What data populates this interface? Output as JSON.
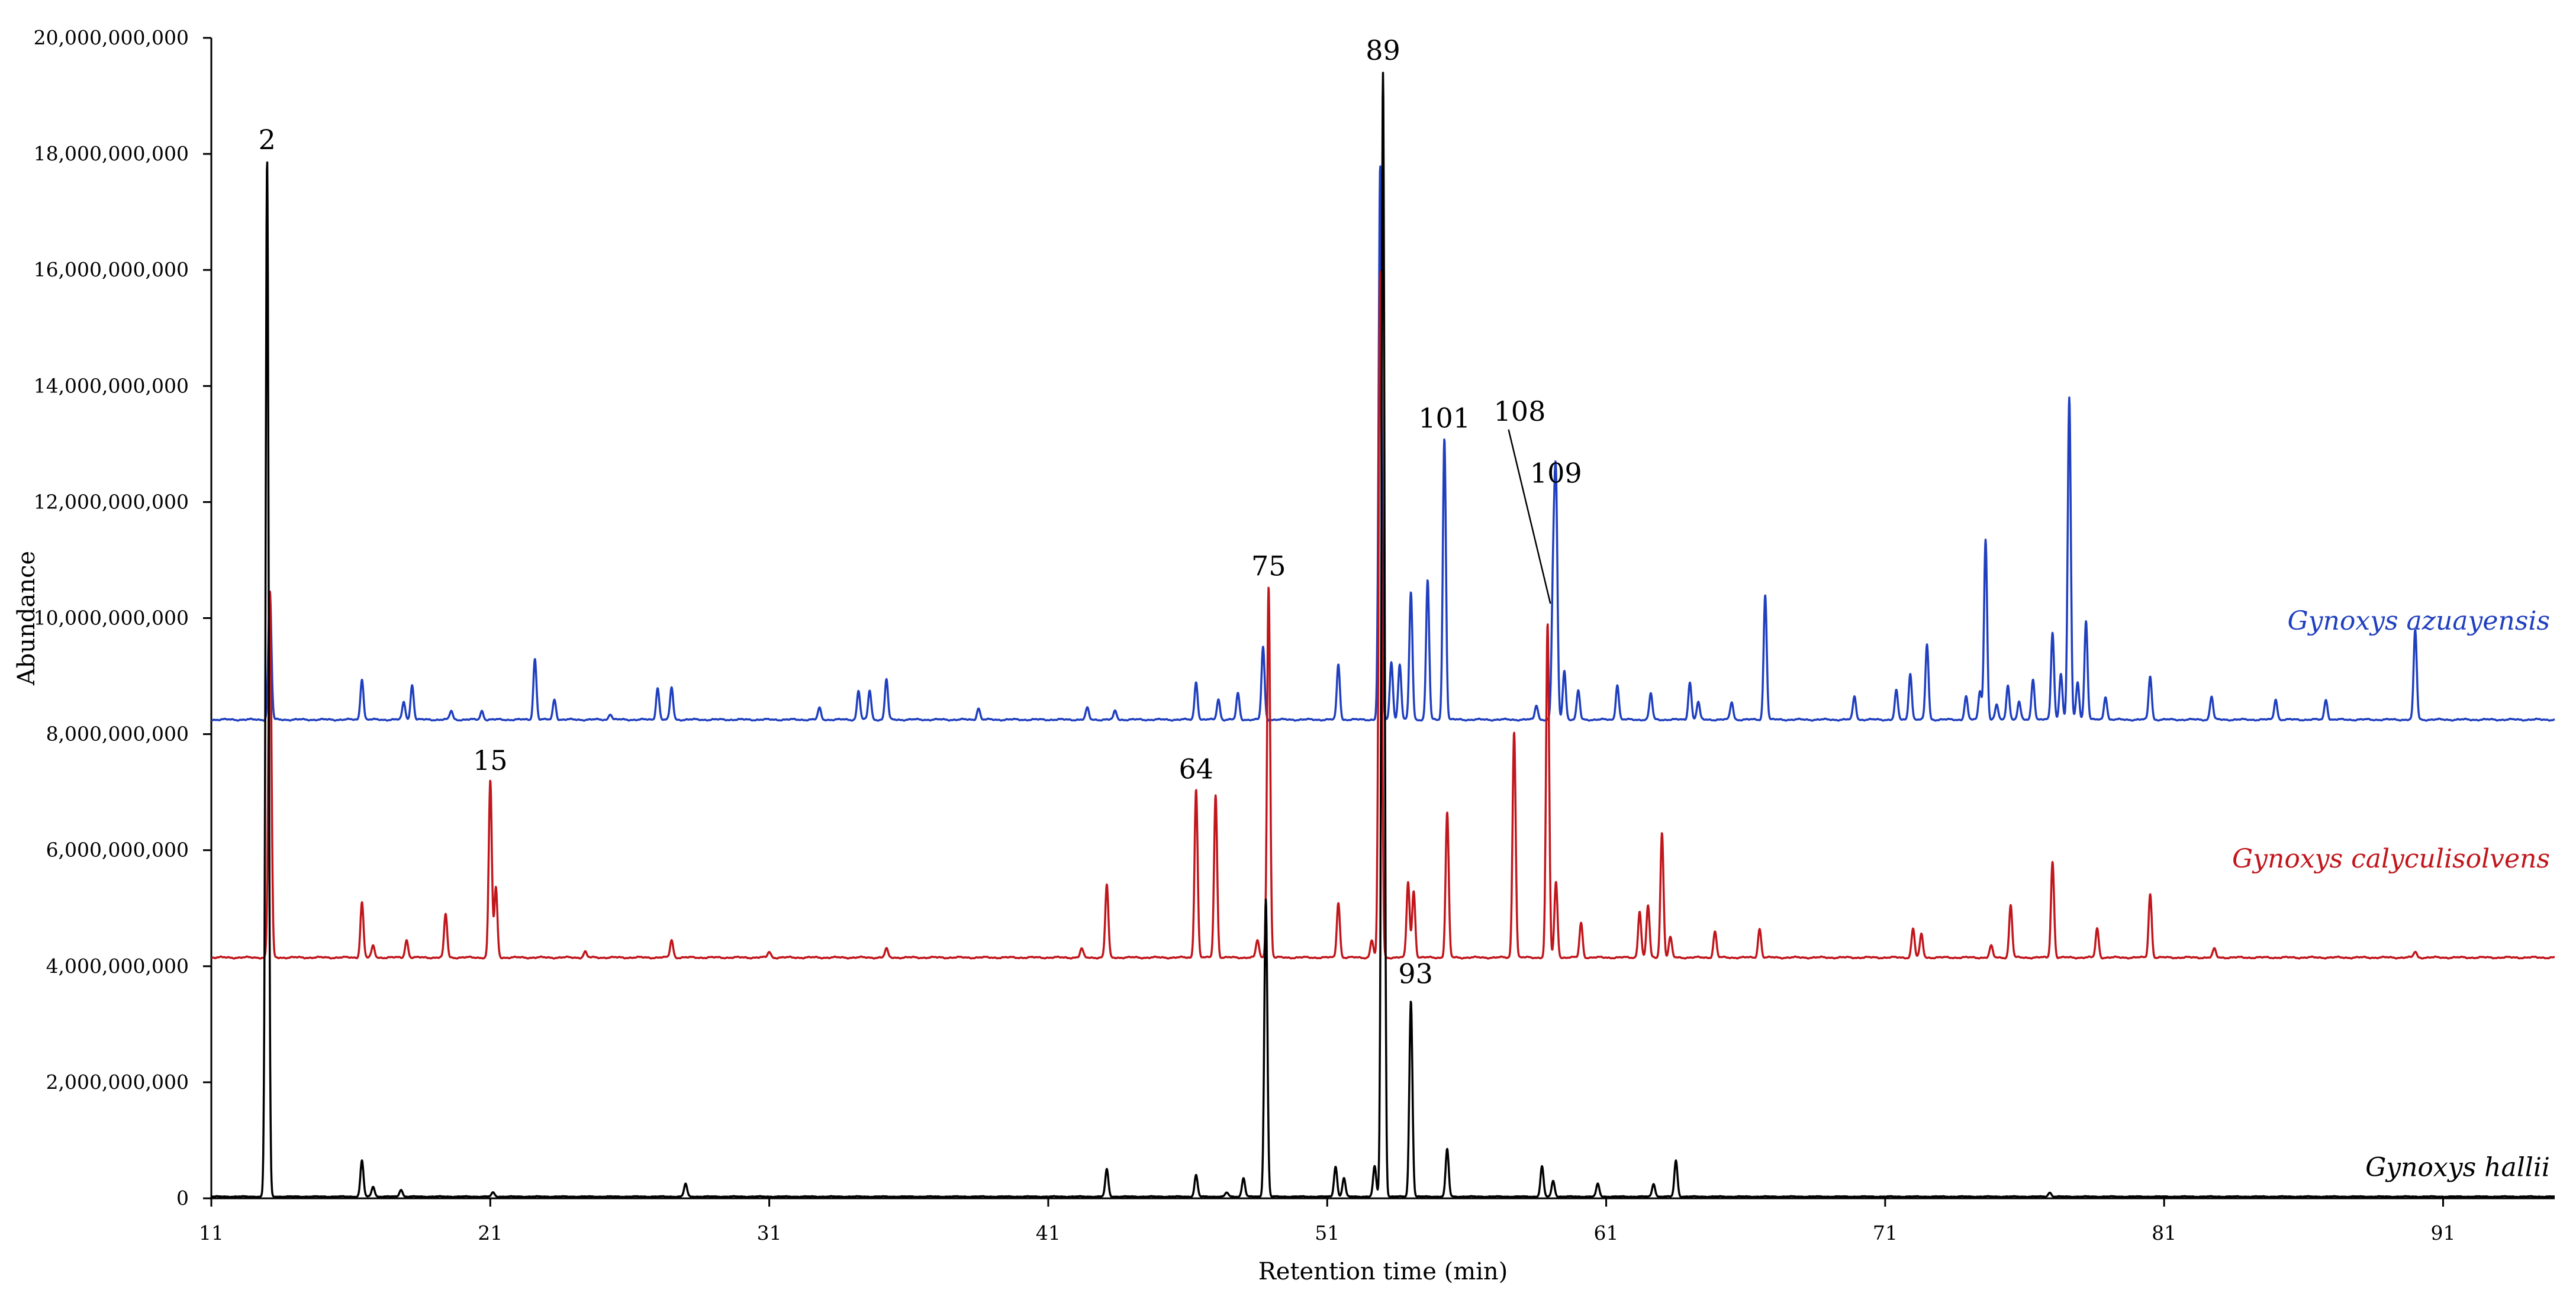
{
  "chart_data": {
    "type": "line",
    "title": "",
    "xlabel": "Retention time (min)",
    "ylabel": "Abundance",
    "xlim": [
      11,
      95
    ],
    "ylim": [
      0,
      20000000000
    ],
    "x_ticks": [
      11,
      21,
      31,
      41,
      51,
      61,
      71,
      81,
      91
    ],
    "x_tick_labels": [
      "11",
      "21",
      "31",
      "41",
      "51",
      "61",
      "71",
      "81",
      "91"
    ],
    "y_ticks": [
      0,
      2000000000,
      4000000000,
      6000000000,
      8000000000,
      10000000000,
      12000000000,
      14000000000,
      16000000000,
      18000000000,
      20000000000
    ],
    "y_tick_labels": [
      "0",
      "2,000,000,000",
      "4,000,000,000",
      "6,000,000,000",
      "8,000,000,000",
      "10,000,000,000",
      "12,000,000,000",
      "14,000,000,000",
      "16,000,000,000",
      "18,000,000,000",
      "20,000,000,000"
    ],
    "grid": false,
    "series": [
      {
        "name": "Gynoxys azuayensis",
        "color": "#1f3fbf",
        "baseline": 8250000000,
        "peaks": [
          [
            13.1,
            10450000000
          ],
          [
            16.4,
            8950000000
          ],
          [
            17.9,
            8550000000
          ],
          [
            18.2,
            8850000000
          ],
          [
            19.6,
            8400000000
          ],
          [
            20.7,
            8400000000
          ],
          [
            22.6,
            9300000000
          ],
          [
            23.3,
            8600000000
          ],
          [
            25.3,
            8350000000
          ],
          [
            27.0,
            8800000000
          ],
          [
            27.5,
            8800000000
          ],
          [
            32.8,
            8450000000
          ],
          [
            34.2,
            8750000000
          ],
          [
            34.6,
            8750000000
          ],
          [
            35.2,
            8950000000
          ],
          [
            38.5,
            8450000000
          ],
          [
            42.4,
            8450000000
          ],
          [
            43.4,
            8400000000
          ],
          [
            46.3,
            8900000000
          ],
          [
            47.1,
            8600000000
          ],
          [
            47.8,
            8700000000
          ],
          [
            48.7,
            9500000000
          ],
          [
            51.4,
            9200000000
          ],
          [
            52.9,
            17800000000
          ],
          [
            53.3,
            9250000000
          ],
          [
            53.6,
            9200000000
          ],
          [
            54.0,
            10450000000
          ],
          [
            54.6,
            10650000000
          ],
          [
            55.2,
            13100000000
          ],
          [
            58.5,
            8500000000
          ],
          [
            59.1,
            10550000000
          ],
          [
            59.2,
            12150000000
          ],
          [
            59.5,
            9100000000
          ],
          [
            60.0,
            8750000000
          ],
          [
            61.4,
            8850000000
          ],
          [
            62.6,
            8700000000
          ],
          [
            64.0,
            8900000000
          ],
          [
            64.3,
            8550000000
          ],
          [
            65.5,
            8550000000
          ],
          [
            66.7,
            10400000000
          ],
          [
            69.9,
            8650000000
          ],
          [
            71.4,
            8750000000
          ],
          [
            71.9,
            9050000000
          ],
          [
            72.5,
            9550000000
          ],
          [
            73.9,
            8650000000
          ],
          [
            74.4,
            8750000000
          ],
          [
            74.6,
            11350000000
          ],
          [
            75.0,
            8500000000
          ],
          [
            75.4,
            8850000000
          ],
          [
            75.8,
            8550000000
          ],
          [
            76.3,
            8950000000
          ],
          [
            77.0,
            9750000000
          ],
          [
            77.3,
            9050000000
          ],
          [
            77.6,
            13800000000
          ],
          [
            77.9,
            8900000000
          ],
          [
            78.2,
            9950000000
          ],
          [
            78.9,
            8650000000
          ],
          [
            80.5,
            9000000000
          ],
          [
            82.7,
            8650000000
          ],
          [
            85.0,
            8600000000
          ],
          [
            86.8,
            8600000000
          ],
          [
            90.0,
            9800000000
          ]
        ]
      },
      {
        "name": "Gynoxys calyculisolvens",
        "color": "#c0161c",
        "baseline": 4150000000,
        "peaks": [
          [
            13.1,
            10450000000
          ],
          [
            16.4,
            5100000000
          ],
          [
            16.8,
            4350000000
          ],
          [
            18.0,
            4450000000
          ],
          [
            19.4,
            4900000000
          ],
          [
            21.0,
            7200000000
          ],
          [
            21.2,
            5350000000
          ],
          [
            24.4,
            4250000000
          ],
          [
            27.5,
            4450000000
          ],
          [
            31.0,
            4250000000
          ],
          [
            35.2,
            4300000000
          ],
          [
            42.2,
            4300000000
          ],
          [
            43.1,
            5400000000
          ],
          [
            46.3,
            7050000000
          ],
          [
            47.0,
            6950000000
          ],
          [
            48.5,
            4450000000
          ],
          [
            48.9,
            10550000000
          ],
          [
            51.4,
            5100000000
          ],
          [
            52.6,
            4450000000
          ],
          [
            52.9,
            16000000000
          ],
          [
            53.9,
            5450000000
          ],
          [
            54.1,
            5300000000
          ],
          [
            55.3,
            6650000000
          ],
          [
            57.7,
            8050000000
          ],
          [
            58.9,
            9900000000
          ],
          [
            59.2,
            5450000000
          ],
          [
            60.1,
            4750000000
          ],
          [
            62.2,
            4950000000
          ],
          [
            62.5,
            5050000000
          ],
          [
            63.0,
            6300000000
          ],
          [
            63.3,
            4500000000
          ],
          [
            64.9,
            4600000000
          ],
          [
            66.5,
            4650000000
          ],
          [
            72.0,
            4650000000
          ],
          [
            72.3,
            4550000000
          ],
          [
            74.8,
            4350000000
          ],
          [
            75.5,
            5050000000
          ],
          [
            77.0,
            5800000000
          ],
          [
            78.6,
            4650000000
          ],
          [
            80.5,
            5250000000
          ],
          [
            82.8,
            4300000000
          ],
          [
            90.0,
            4250000000
          ]
        ]
      },
      {
        "name": "Gynoxys hallii",
        "color": "#000000",
        "baseline": 30000000,
        "peaks": [
          [
            13.0,
            17900000000
          ],
          [
            16.4,
            650000000
          ],
          [
            16.8,
            200000000
          ],
          [
            17.8,
            150000000
          ],
          [
            21.1,
            100000000
          ],
          [
            28.0,
            250000000
          ],
          [
            43.1,
            500000000
          ],
          [
            46.3,
            400000000
          ],
          [
            47.4,
            100000000
          ],
          [
            48.0,
            350000000
          ],
          [
            48.8,
            5150000000
          ],
          [
            51.3,
            550000000
          ],
          [
            51.6,
            350000000
          ],
          [
            52.7,
            550000000
          ],
          [
            53.0,
            19400000000
          ],
          [
            54.0,
            3400000000
          ],
          [
            55.3,
            850000000
          ],
          [
            58.7,
            550000000
          ],
          [
            59.1,
            300000000
          ],
          [
            60.7,
            250000000
          ],
          [
            62.7,
            250000000
          ],
          [
            63.5,
            650000000
          ],
          [
            76.9,
            100000000
          ]
        ]
      }
    ],
    "series_labels": [
      "Gynoxys azuayensis",
      "Gynoxys calyculisolvens",
      "Gynoxys hallii"
    ],
    "annotations": [
      {
        "label": "2",
        "x": 13.0,
        "y": 17900000000
      },
      {
        "label": "15",
        "x": 21.0,
        "y": 7200000000
      },
      {
        "label": "64",
        "x": 46.3,
        "y": 7050000000
      },
      {
        "label": "75",
        "x": 48.9,
        "y": 10550000000
      },
      {
        "label": "89",
        "x": 53.0,
        "y": 19400000000
      },
      {
        "label": "93",
        "x": 54.0,
        "y": 3400000000
      },
      {
        "label": "101",
        "x": 55.2,
        "y": 13100000000
      },
      {
        "label": "108",
        "x": 59.0,
        "y": 10300000000
      },
      {
        "label": "109",
        "x": 59.2,
        "y": 12150000000
      }
    ]
  }
}
